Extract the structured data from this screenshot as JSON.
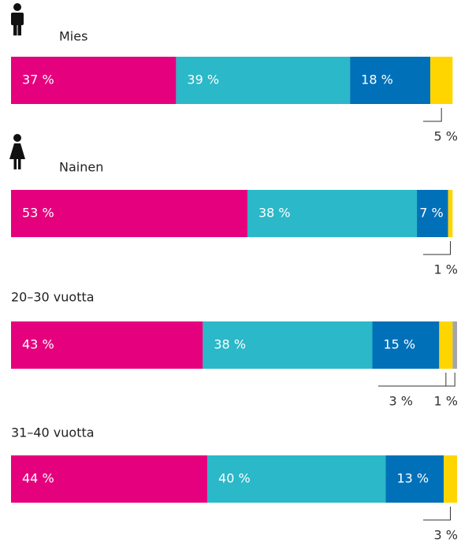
{
  "chart_data": {
    "type": "bar",
    "categories": [
      "Mies",
      "Nainen",
      "20–30 vuotta",
      "31–40 vuotta"
    ],
    "xlim": [
      0,
      100
    ],
    "series": [
      {
        "color": "#e5007d",
        "values": [
          37,
          53,
          43,
          44
        ],
        "value_labels": [
          "37 %",
          "53 %",
          "43 %",
          "44 %"
        ]
      },
      {
        "color": "#2bb8c8",
        "values": [
          39,
          38,
          38,
          40
        ],
        "value_labels": [
          "39 %",
          "38 %",
          "38 %",
          "40 %"
        ]
      },
      {
        "color": "#0070b9",
        "values": [
          18,
          7,
          15,
          13
        ],
        "value_labels": [
          "18 %",
          "7 %",
          "15 %",
          "13 %"
        ]
      },
      {
        "color": "#ffd500",
        "values": [
          5,
          1,
          3,
          3
        ],
        "value_labels": [
          "5 %",
          "1 %",
          "3 %",
          "3 %"
        ]
      },
      {
        "color": "#a5a5a5",
        "values": [
          null,
          null,
          1,
          null
        ],
        "value_labels": [
          null,
          null,
          "1 %",
          null
        ]
      }
    ]
  }
}
